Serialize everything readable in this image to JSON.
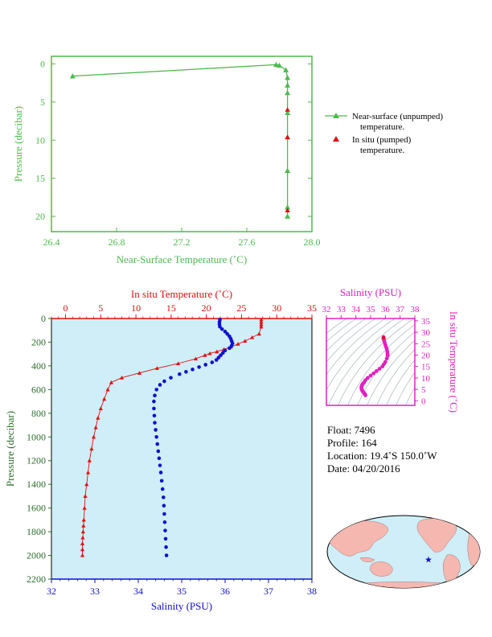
{
  "colors": {
    "green": "#4cbb4c",
    "red": "#e01010",
    "blue": "#1010d0",
    "magenta": "#e020c0",
    "darkgreen": "#2e6e2e",
    "panel": "#cfeef7",
    "land": "#f4b8b0",
    "ocean": "#cfeef7"
  },
  "chart_data": [
    {
      "type": "line",
      "xlabel": "Near-Surface Temperature (˚C)",
      "ylabel": "Pressure (decibar)",
      "xlim": [
        26.4,
        28.0
      ],
      "ylim": [
        22,
        -1
      ],
      "xticks": [
        "26.4",
        "26.8",
        "27.2",
        "27.6",
        "28.0"
      ],
      "xtick_values": [
        26.4,
        26.8,
        27.2,
        27.6,
        28.0
      ],
      "yticks": [
        "0",
        "5",
        "10",
        "15",
        "20"
      ],
      "ytick_values": [
        0,
        5,
        10,
        15,
        20
      ],
      "legend": [
        {
          "label1": "Near-surface (unpumped)",
          "label2": "temperature."
        },
        {
          "label1": "In situ (pumped)",
          "label2": "temperature."
        }
      ],
      "series": [
        {
          "name": "Near-surface (unpumped) temperature.",
          "x": [
            26.53,
            27.78,
            27.8,
            27.84,
            27.85,
            27.85,
            27.85,
            27.85,
            27.85,
            27.85,
            27.85,
            27.85
          ],
          "y": [
            1.6,
            0.1,
            0.2,
            0.8,
            1.8,
            2.8,
            3.8,
            6.4,
            9.6,
            14.0,
            18.8,
            20.0
          ]
        },
        {
          "name": "In situ (pumped) temperature.",
          "x": [
            27.85,
            27.85,
            27.85
          ],
          "y": [
            6.0,
            9.6,
            19.2
          ]
        }
      ]
    },
    {
      "type": "line",
      "ylabel": "Pressure (decibar)",
      "top_xlabel": "In situ Temperature (˚C)",
      "bottom_xlabel": "Salinity (PSU)",
      "ylim": [
        2200,
        0
      ],
      "yticks": [
        "0",
        "200",
        "400",
        "600",
        "800",
        "1000",
        "1200",
        "1400",
        "1600",
        "1800",
        "2000",
        "2200"
      ],
      "ytick_values": [
        0,
        200,
        400,
        600,
        800,
        1000,
        1200,
        1400,
        1600,
        1800,
        2000,
        2200
      ],
      "top_xlim": [
        -2,
        35
      ],
      "top_xticks": [
        "0",
        "5",
        "10",
        "15",
        "20",
        "25",
        "30",
        "35"
      ],
      "top_xtick_values": [
        0,
        5,
        10,
        15,
        20,
        25,
        30,
        35
      ],
      "bottom_xlim": [
        32,
        38
      ],
      "bottom_xticks": [
        "32",
        "33",
        "34",
        "35",
        "36",
        "37",
        "38"
      ],
      "bottom_xtick_values": [
        32,
        33,
        34,
        35,
        36,
        37,
        38
      ],
      "series": [
        {
          "axis": "temperature",
          "x": [
            27.8,
            27.8,
            27.8,
            27.8,
            27.5,
            26.5,
            25.5,
            24.5,
            23.5,
            22.5,
            21.5,
            20.5,
            19.8,
            18.5,
            16.0,
            13.0,
            10.5,
            8.0,
            6.5,
            6.0,
            5.5,
            5.0,
            4.6,
            4.3,
            4.0,
            3.7,
            3.4,
            3.2,
            3.0,
            2.8,
            2.7,
            2.6,
            2.55,
            2.5,
            2.45,
            2.4,
            2.4,
            2.4
          ],
          "y": [
            10,
            30,
            50,
            70,
            130,
            160,
            190,
            215,
            240,
            260,
            280,
            295,
            310,
            340,
            380,
            420,
            460,
            500,
            540,
            600,
            680,
            760,
            840,
            920,
            1000,
            1100,
            1200,
            1300,
            1400,
            1500,
            1600,
            1700,
            1750,
            1800,
            1850,
            1900,
            1950,
            2000
          ]
        },
        {
          "axis": "salinity",
          "x": [
            35.88,
            35.87,
            35.87,
            35.88,
            35.93,
            36.0,
            36.05,
            36.1,
            36.13,
            36.15,
            36.17,
            36.15,
            36.1,
            36.0,
            35.95,
            35.9,
            35.85,
            35.8,
            35.7,
            35.55,
            35.4,
            35.25,
            35.1,
            34.95,
            34.75,
            34.6,
            34.5,
            34.42,
            34.38,
            34.36,
            34.36,
            34.37,
            34.38,
            34.4,
            34.42,
            34.44,
            34.46,
            34.48,
            34.5,
            34.52,
            34.54,
            34.56,
            34.58,
            34.59,
            34.6,
            34.61,
            34.62,
            34.63,
            34.64,
            34.65
          ],
          "y": [
            10,
            30,
            50,
            70,
            90,
            110,
            130,
            150,
            170,
            190,
            210,
            230,
            250,
            270,
            290,
            310,
            330,
            350,
            370,
            390,
            410,
            430,
            450,
            470,
            500,
            530,
            560,
            600,
            650,
            700,
            760,
            820,
            880,
            940,
            1000,
            1060,
            1120,
            1180,
            1240,
            1300,
            1370,
            1440,
            1510,
            1580,
            1650,
            1720,
            1790,
            1860,
            1930,
            2000
          ]
        }
      ]
    },
    {
      "type": "scatter",
      "top_xlabel": "Salinity (PSU)",
      "right_ylabel": "In situ Temperature (˚C)",
      "xlim": [
        32,
        38
      ],
      "ylim": [
        -2,
        36
      ],
      "xticks": [
        "32",
        "33",
        "34",
        "35",
        "36",
        "37",
        "38"
      ],
      "xtick_values": [
        32,
        33,
        34,
        35,
        36,
        37,
        38
      ],
      "yticks": [
        "0",
        "5",
        "10",
        "15",
        "20",
        "25",
        "30",
        "35"
      ],
      "ytick_values": [
        0,
        5,
        10,
        15,
        20,
        25,
        30,
        35
      ],
      "x": [
        35.88,
        35.88,
        35.9,
        35.95,
        36.0,
        36.05,
        36.1,
        36.13,
        36.15,
        36.15,
        36.1,
        36.0,
        35.9,
        35.8,
        35.6,
        35.4,
        35.2,
        35.0,
        34.8,
        34.65,
        34.55,
        34.48,
        34.43,
        34.4,
        34.38,
        34.38,
        34.4,
        34.42,
        34.45,
        34.48,
        34.52,
        34.56,
        34.6,
        34.63,
        34.65
      ],
      "y": [
        27.8,
        27.5,
        26.5,
        25.5,
        24.5,
        23.5,
        22.5,
        21.5,
        20.5,
        19.8,
        18.5,
        17.0,
        16.0,
        15.0,
        14.0,
        13.0,
        12.0,
        11.0,
        10.0,
        9.0,
        8.0,
        7.5,
        7.0,
        6.5,
        6.0,
        5.5,
        5.0,
        4.6,
        4.3,
        4.0,
        3.7,
        3.4,
        3.0,
        2.7,
        2.4
      ]
    }
  ],
  "info": {
    "float": "Float:  7496",
    "profile": "Profile:  164",
    "location": "Location:  19.4˚S  150.0˚W",
    "date": "Date:  04/20/2016"
  },
  "map": {
    "marker_lon": -150.0,
    "marker_lat": -19.4
  }
}
